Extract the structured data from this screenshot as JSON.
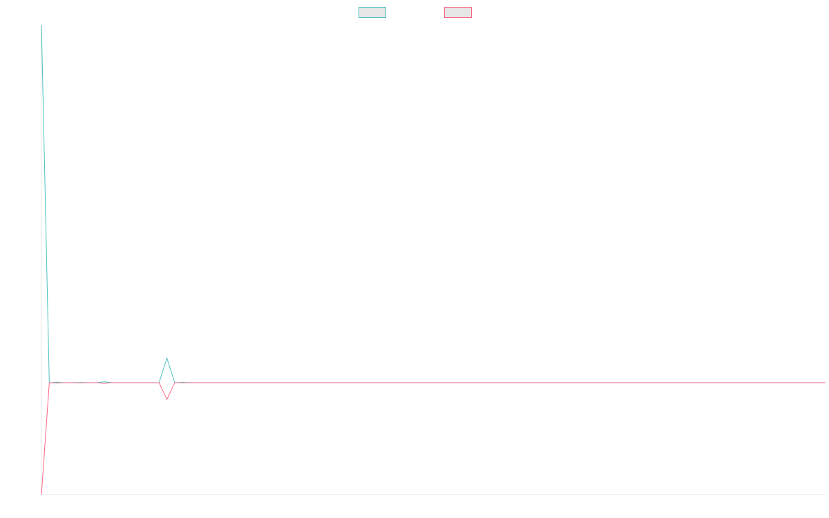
{
  "chart_data": {
    "type": "line",
    "title": "",
    "xlabel": "",
    "ylabel": "",
    "grid": false,
    "legend_placement": "top-center",
    "x": [
      0,
      1,
      2,
      3,
      4,
      5,
      6,
      7,
      8,
      9,
      10,
      11,
      12,
      13,
      14,
      15,
      16,
      17,
      18,
      19,
      20,
      21,
      22,
      23,
      24,
      25,
      26,
      27,
      28,
      29,
      30,
      31,
      32,
      33,
      34,
      35,
      36,
      37,
      38,
      39,
      40,
      41,
      42,
      43,
      44,
      45,
      46,
      47,
      48,
      49,
      50,
      51,
      52,
      53,
      54,
      55,
      56,
      57,
      58,
      59,
      60,
      61,
      62,
      63,
      64,
      65,
      66,
      67,
      68,
      69,
      70,
      71,
      72,
      73,
      74,
      75,
      76,
      77,
      78,
      79,
      80,
      81,
      82,
      83,
      84,
      85,
      86,
      87,
      88,
      89,
      90,
      91,
      92,
      93,
      94,
      95,
      96,
      97,
      98,
      99,
      100
    ],
    "xlim": [
      0,
      100
    ],
    "ylim": [
      -100,
      320
    ],
    "series": [
      {
        "name": "",
        "color": "#4bc0c0",
        "fill": "#e6e6e6",
        "values": [
          320,
          0,
          0.4,
          0,
          0,
          0.2,
          0,
          0,
          0.8,
          0,
          0,
          0,
          0,
          0,
          0,
          0,
          22,
          0,
          0.3,
          0,
          0,
          0,
          0,
          0,
          0,
          0,
          0,
          0,
          0,
          0,
          0,
          0,
          0,
          0,
          0,
          0,
          0,
          0,
          0,
          0,
          0,
          0,
          0,
          0,
          0,
          0,
          0,
          0,
          0,
          0,
          0,
          0,
          0,
          0,
          0,
          0,
          0,
          0,
          0,
          0,
          0,
          0,
          0,
          0,
          0,
          0,
          0,
          0,
          0,
          0,
          0,
          0,
          0,
          0,
          0,
          0,
          0,
          0,
          0,
          0,
          0,
          0,
          0,
          0,
          0,
          0,
          0,
          0,
          0,
          0,
          0,
          0,
          0,
          0,
          0,
          0,
          0,
          0,
          0,
          0,
          0
        ]
      },
      {
        "name": "",
        "color": "#ff6384",
        "fill": "#e6e6e6",
        "values": [
          -100,
          0,
          -0.3,
          0,
          0,
          -0.2,
          0,
          0,
          -0.6,
          0,
          0,
          0,
          0,
          0,
          0,
          0,
          -15,
          0,
          -0.2,
          0,
          0,
          0,
          0,
          0,
          0,
          0,
          0,
          0,
          0,
          0,
          0,
          0,
          0,
          0,
          0,
          0,
          0,
          0,
          0,
          0,
          0,
          0,
          0,
          0,
          0,
          0,
          0,
          0,
          0,
          0,
          0,
          0,
          0,
          0,
          0,
          0,
          0,
          0,
          0,
          0,
          0,
          0,
          0,
          0,
          0,
          0,
          0,
          0,
          0,
          0,
          0,
          0,
          0,
          0,
          0,
          0,
          0,
          0,
          0,
          0,
          0,
          0,
          0,
          0,
          0,
          0,
          0,
          0,
          0,
          0,
          0,
          0,
          0,
          0,
          0,
          0,
          0,
          0,
          0,
          0,
          0
        ]
      }
    ]
  }
}
